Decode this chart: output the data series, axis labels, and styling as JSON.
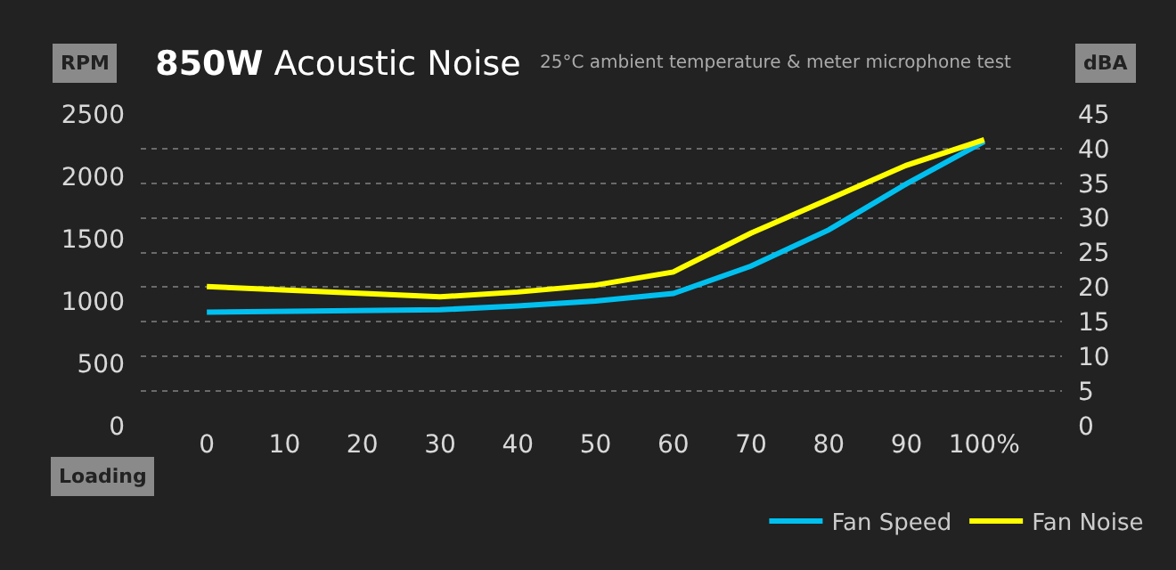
{
  "chart_data": {
    "type": "line",
    "title": "850W Acoustic Noise",
    "subtitle": "25°C ambient temperature & meter microphone test",
    "xlabel": "Loading",
    "ylabel": "RPM",
    "y2label": "dBA",
    "x": [
      0,
      30,
      40,
      50,
      60,
      70,
      80,
      90,
      100
    ],
    "series": [
      {
        "name": "Fan Speed",
        "color": "#00c0f0",
        "values": [
          910,
          930,
          960,
          1000,
          1060,
          1280,
          1570,
          1940,
          2280
        ]
      },
      {
        "name": "Fan Noise",
        "color": "#ffff00",
        "axis": "y2",
        "values": [
          20.1,
          18.6,
          19.3,
          20.3,
          22.2,
          27.8,
          32.7,
          37.6,
          41.3
        ]
      }
    ],
    "xlim": [
      -8.5,
      110
    ],
    "xticks": [
      0,
      10,
      20,
      30,
      40,
      50,
      60,
      70,
      80,
      90,
      {
        "value": 100,
        "label": "100%"
      }
    ],
    "ylim": [
      0,
      2500
    ],
    "yticks": [
      0,
      500,
      1000,
      1500,
      2000,
      2500
    ],
    "y2lim": [
      0,
      45
    ],
    "y2ticks": [
      0,
      5,
      10,
      15,
      20,
      25,
      30,
      35,
      40,
      45
    ],
    "grid": "y2",
    "legend": "bottom right",
    "marker": "none",
    "line_style": "solid"
  }
}
